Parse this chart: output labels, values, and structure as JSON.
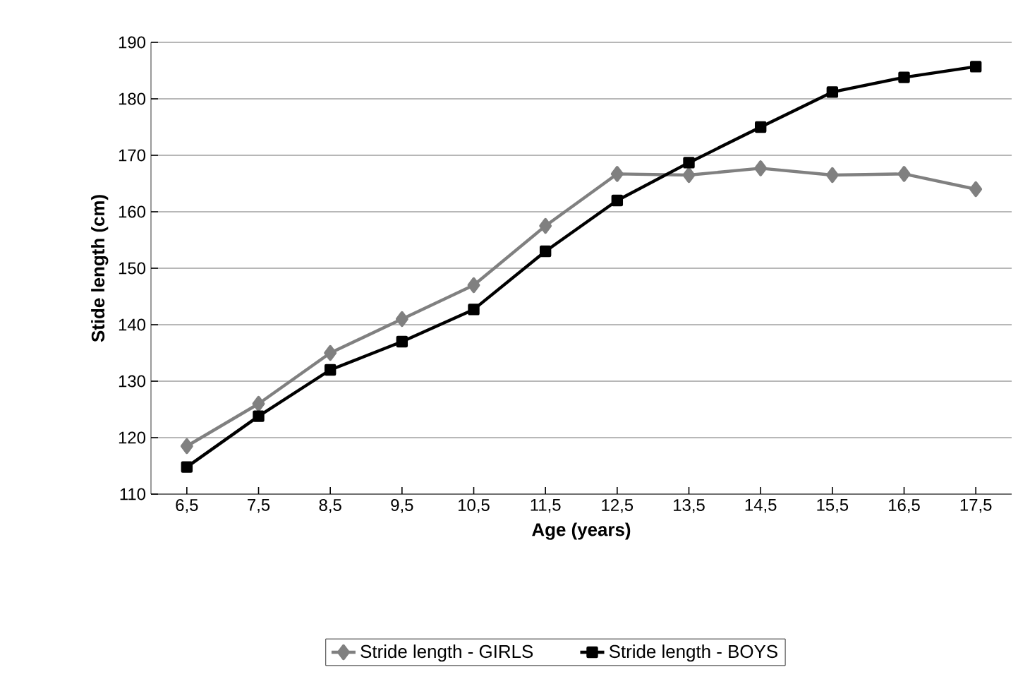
{
  "chart_data": {
    "type": "line",
    "xlabel": "Age (years)",
    "ylabel": "Stide length (cm)",
    "categories": [
      "6,5",
      "7,5",
      "8,5",
      "9,5",
      "10,5",
      "11,5",
      "12,5",
      "13,5",
      "14,5",
      "15,5",
      "16,5",
      "17,5"
    ],
    "series": [
      {
        "name": "Stride length - GIRLS",
        "color": "#808080",
        "marker": "diamond",
        "values": [
          118.5,
          126,
          135,
          141,
          147,
          157.5,
          166.7,
          166.5,
          167.7,
          166.5,
          166.7,
          164
        ]
      },
      {
        "name": "Stride length -  BOYS",
        "color": "#000000",
        "marker": "square",
        "values": [
          114.8,
          123.8,
          132,
          137,
          142.7,
          153,
          162,
          168.7,
          175,
          181.2,
          183.8,
          185.7
        ]
      }
    ],
    "ylim": [
      110,
      190
    ],
    "yticks": [
      110,
      120,
      130,
      140,
      150,
      160,
      170,
      180,
      190
    ],
    "grid": "y",
    "legend": "bottom",
    "line_style": "solid"
  }
}
